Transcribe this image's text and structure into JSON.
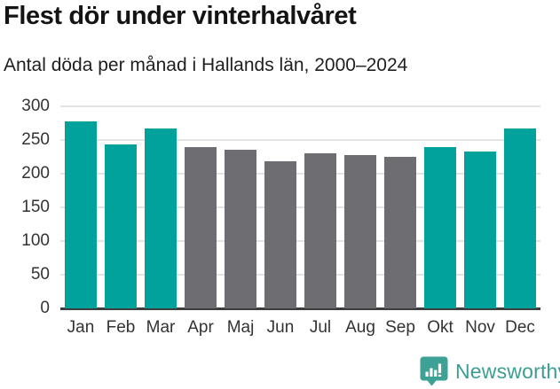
{
  "chart_data": {
    "type": "bar",
    "title": "Flest dör under vinterhalvåret",
    "subtitle": "Antal döda per månad i Hallands län, 2000–2024",
    "categories": [
      "Jan",
      "Feb",
      "Mar",
      "Apr",
      "Maj",
      "Jun",
      "Jul",
      "Aug",
      "Sep",
      "Okt",
      "Nov",
      "Dec"
    ],
    "values": [
      278,
      244,
      267,
      240,
      235,
      218,
      230,
      228,
      225,
      239,
      233,
      267
    ],
    "bar_colors": [
      "#00a29b",
      "#00a29b",
      "#00a29b",
      "#6d6d72",
      "#6d6d72",
      "#6d6d72",
      "#6d6d72",
      "#6d6d72",
      "#6d6d72",
      "#00a29b",
      "#00a29b",
      "#00a29b"
    ],
    "highlight_color": "#00a29b",
    "muted_color": "#6d6d72",
    "highlighted_categories": [
      "Jan",
      "Feb",
      "Mar",
      "Okt",
      "Nov",
      "Dec"
    ],
    "xlabel": "",
    "ylabel": "",
    "ylim": [
      0,
      300
    ],
    "yticks": [
      0,
      50,
      100,
      150,
      200,
      250,
      300
    ],
    "grid": "horizontal",
    "legend": "none",
    "gridline_color": "#e4e4e4",
    "axis_line_color": "#3d3d3d",
    "tick_label_color": "#333333"
  },
  "footer": {
    "brand": "Newsworthy",
    "brand_color": "#3b9e93",
    "logo_icon": "bar-chart-speech-bubble-icon"
  }
}
